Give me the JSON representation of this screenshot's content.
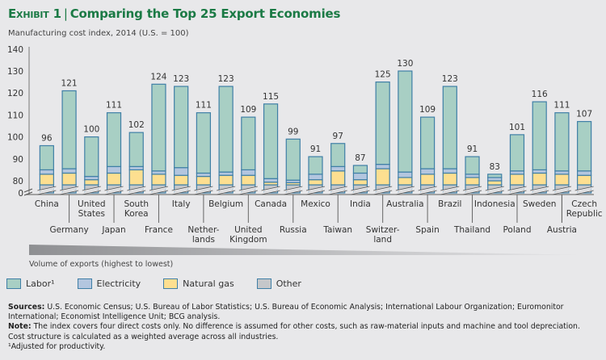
{
  "header": {
    "exhibit": "Exhibit 1",
    "separator": "|",
    "title": "Comparing the Top 25 Export Economies",
    "subtitle": "Manufacturing cost index, 2014 (U.S. = 100)"
  },
  "volume_label": "Volume of exports (highest to lowest)",
  "legend": [
    {
      "key": "labor",
      "label": "Labor¹",
      "color": "#a8cfc4"
    },
    {
      "key": "electricity",
      "label": "Electricity",
      "color": "#b3c6df"
    },
    {
      "key": "natural_gas",
      "label": "Natural gas",
      "color": "#fddf90"
    },
    {
      "key": "other",
      "label": "Other",
      "color": "#c5c7ca"
    }
  ],
  "colors": {
    "title": "#1b7a45",
    "bar_outline": "#3f7fa6",
    "axis": "#777777",
    "gradient_dark": "#8e8f92",
    "gradient_light": "#e8e8ea"
  },
  "notes": {
    "sources_label": "Sources:",
    "sources_text": " U.S. Economic Census; U.S. Bureau of Labor Statistics; U.S. Bureau of Economic Analysis; International Labour Organization; Euromonitor International; Economist Intelligence Unit; BCG analysis.",
    "note_label": "Note:",
    "note_text": " The index covers four direct costs only. No difference is assumed for other costs, such as raw-material inputs and machine and tool depreciation. Cost structure is calculated as a weighted average across all industries.",
    "footnote": "¹Adjusted for productivity."
  },
  "chart_data": {
    "type": "bar",
    "stacked": true,
    "title": "Comparing the Top 25 Export Economies",
    "ylabel": "Manufacturing cost index, 2014 (U.S. = 100)",
    "xlabel": "Volume of exports (highest to lowest)",
    "y_ticks": [
      0,
      80,
      90,
      100,
      110,
      120,
      130,
      140
    ],
    "y_axis_break": "between 0 and 80",
    "ylim": [
      0,
      140
    ],
    "grid": false,
    "legend_position": "bottom-left",
    "categories": [
      [
        "China"
      ],
      [
        "Germany"
      ],
      [
        "United",
        "States"
      ],
      [
        "Japan"
      ],
      [
        "South",
        "Korea"
      ],
      [
        "France"
      ],
      [
        "Italy"
      ],
      [
        "Nether-",
        "lands"
      ],
      [
        "Belgium"
      ],
      [
        "United",
        "Kingdom"
      ],
      [
        "Canada"
      ],
      [
        "Russia"
      ],
      [
        "Mexico"
      ],
      [
        "Taiwan"
      ],
      [
        "India"
      ],
      [
        "Switzer-",
        "land"
      ],
      [
        "Australia"
      ],
      [
        "Spain"
      ],
      [
        "Brazil"
      ],
      [
        "Thailand"
      ],
      [
        "Indonesia"
      ],
      [
        "Poland"
      ],
      [
        "Sweden"
      ],
      [
        "Austria"
      ],
      [
        "Czech",
        "Republic"
      ]
    ],
    "totals": [
      96,
      121,
      100,
      111,
      102,
      124,
      123,
      111,
      123,
      109,
      115,
      99,
      91,
      97,
      87,
      125,
      130,
      109,
      123,
      91,
      83,
      101,
      116,
      111,
      107
    ],
    "series": [
      {
        "name": "Other",
        "key": "other",
        "values": [
          78.5,
          78.5,
          78.5,
          78.5,
          78.5,
          78.5,
          78.5,
          78.5,
          78.5,
          78.5,
          78.5,
          78.5,
          78.5,
          78.5,
          78.5,
          78.5,
          78.5,
          78.5,
          78.5,
          78.5,
          78.5,
          78.5,
          78.5,
          78.5,
          78.5
        ]
      },
      {
        "name": "Natural gas",
        "key": "natural_gas",
        "values": [
          4.5,
          5,
          2,
          5,
          6.5,
          4.5,
          4,
          3.5,
          4,
          4,
          1,
          0.8,
          2,
          6,
          2,
          7,
          3,
          4.5,
          5,
          3,
          1.5,
          4.5,
          5,
          4.5,
          4
        ]
      },
      {
        "name": "Electricity",
        "key": "electricity",
        "values": [
          2,
          2,
          1.5,
          3,
          1.5,
          1.5,
          3.5,
          1.5,
          1.5,
          2.5,
          1.5,
          1,
          2.5,
          2,
          3,
          2,
          2.5,
          2.5,
          2,
          1.5,
          1.5,
          1.5,
          1.5,
          1.5,
          2
        ]
      },
      {
        "name": "Labor¹",
        "key": "labor",
        "values": [
          11,
          35.5,
          18,
          24.5,
          15.5,
          39.5,
          37,
          27.5,
          39,
          24,
          34,
          18.7,
          8,
          10.5,
          3.5,
          37.5,
          46,
          23.5,
          37.5,
          8,
          1.5,
          16.5,
          31,
          26.5,
          22.5
        ]
      }
    ]
  }
}
